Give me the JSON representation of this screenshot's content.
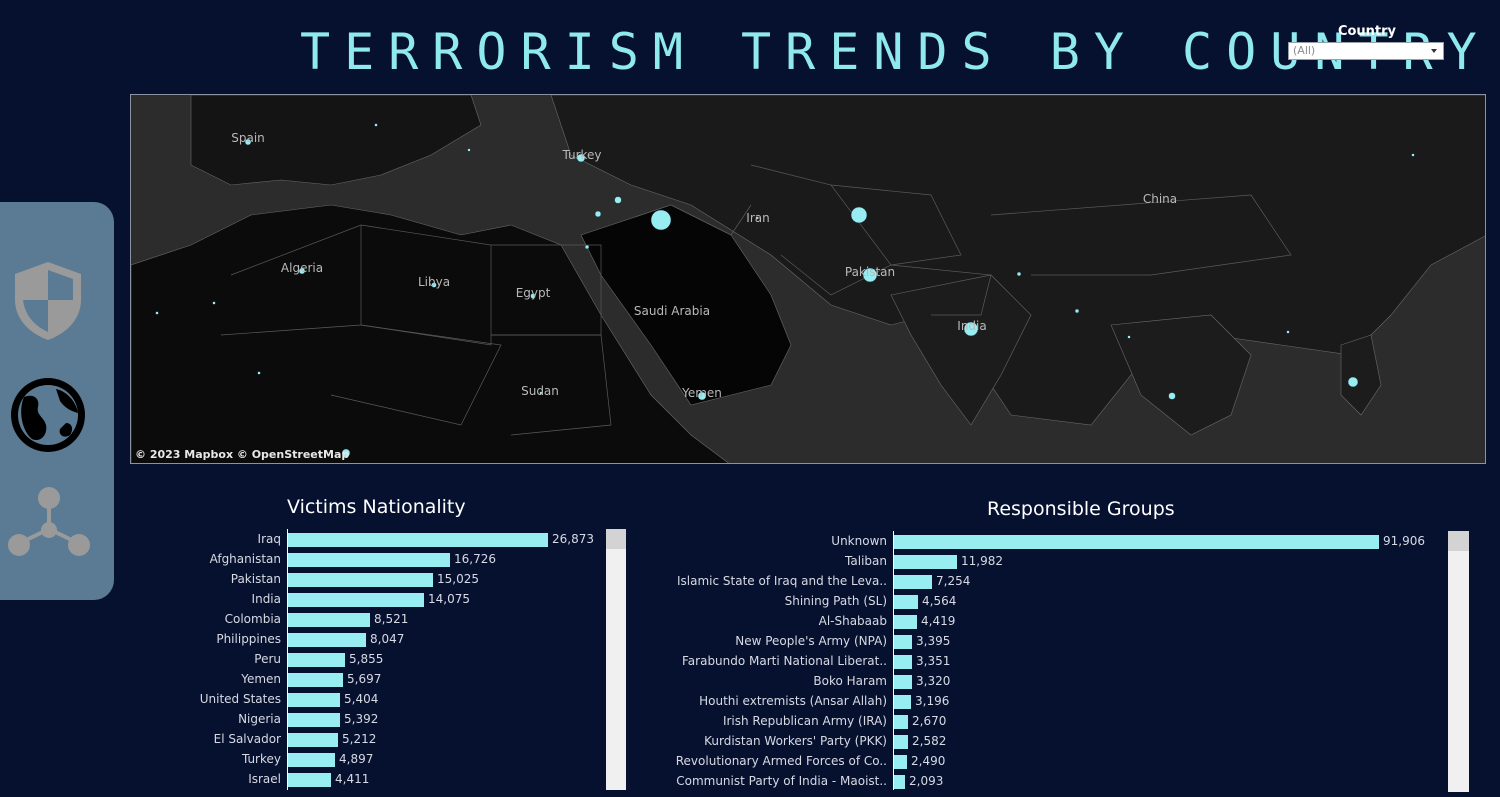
{
  "header": {
    "title": "TERRORISM TRENDS BY COUNTRY",
    "filter_label": "Country",
    "filter_value": "(All)"
  },
  "map": {
    "attribution": "© 2023 Mapbox © OpenStreetMap",
    "labels": [
      "Spain",
      "Turkey",
      "Iran",
      "China",
      "Algeria",
      "Libya",
      "Egypt",
      "Saudi Arabia",
      "Pakistan",
      "India",
      "Sudan",
      "Yemen"
    ]
  },
  "nav": {
    "items": [
      "shield-icon",
      "globe-icon",
      "network-icon"
    ]
  },
  "victims_chart": {
    "title": "Victims Nationality",
    "chart_data": {
      "type": "bar",
      "orientation": "horizontal",
      "categories": [
        "Iraq",
        "Afghanistan",
        "Pakistan",
        "India",
        "Colombia",
        "Philippines",
        "Peru",
        "Yemen",
        "United States",
        "Nigeria",
        "El Salvador",
        "Turkey",
        "Israel"
      ],
      "values": [
        26873,
        16726,
        15025,
        14075,
        8521,
        8047,
        5855,
        5697,
        5404,
        5392,
        5212,
        4897,
        4411
      ],
      "value_labels": [
        "26,873",
        "16,726",
        "15,025",
        "14,075",
        "8,521",
        "8,047",
        "5,855",
        "5,697",
        "5,404",
        "5,392",
        "5,212",
        "4,897",
        "4,411"
      ],
      "color": "#98edf0"
    }
  },
  "groups_chart": {
    "title": "Responsible Groups",
    "chart_data": {
      "type": "bar",
      "orientation": "horizontal",
      "categories": [
        "Unknown",
        "Taliban",
        "Islamic State of Iraq and the Leva..",
        "Shining Path (SL)",
        "Al-Shabaab",
        "New People's Army (NPA)",
        "Farabundo Marti National Liberat..",
        "Boko Haram",
        "Houthi extremists (Ansar Allah)",
        "Irish Republican Army (IRA)",
        "Kurdistan Workers' Party (PKK)",
        "Revolutionary Armed Forces of Co..",
        "Communist Party of India - Maoist.."
      ],
      "values": [
        91906,
        11982,
        7254,
        4564,
        4419,
        3395,
        3351,
        3320,
        3196,
        2670,
        2582,
        2490,
        2093
      ],
      "value_labels": [
        "91,906",
        "11,982",
        "7,254",
        "4,564",
        "4,419",
        "3,395",
        "3,351",
        "3,320",
        "3,196",
        "2,670",
        "2,582",
        "2,490",
        "2,093"
      ],
      "color": "#98edf0"
    }
  }
}
